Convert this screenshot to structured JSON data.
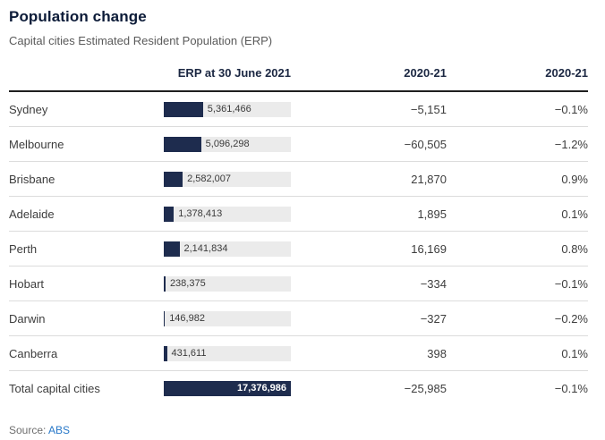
{
  "title": "Population change",
  "subtitle": "Capital cities Estimated Resident Population (ERP)",
  "table": {
    "columns": [
      "",
      "ERP at 30 June 2021",
      "2020-21",
      "2020-21"
    ],
    "max_value": 17376986,
    "rows": [
      {
        "label": "Sydney",
        "erp": 5361466,
        "erp_display": "5,361,466",
        "change": "−5,151",
        "pct": "−0.1%",
        "is_total": false
      },
      {
        "label": "Melbourne",
        "erp": 5096298,
        "erp_display": "5,096,298",
        "change": "−60,505",
        "pct": "−1.2%",
        "is_total": false
      },
      {
        "label": "Brisbane",
        "erp": 2582007,
        "erp_display": "2,582,007",
        "change": "21,870",
        "pct": "0.9%",
        "is_total": false
      },
      {
        "label": "Adelaide",
        "erp": 1378413,
        "erp_display": "1,378,413",
        "change": "1,895",
        "pct": "0.1%",
        "is_total": false
      },
      {
        "label": "Perth",
        "erp": 2141834,
        "erp_display": "2,141,834",
        "change": "16,169",
        "pct": "0.8%",
        "is_total": false
      },
      {
        "label": "Hobart",
        "erp": 238375,
        "erp_display": "238,375",
        "change": "−334",
        "pct": "−0.1%",
        "is_total": false
      },
      {
        "label": "Darwin",
        "erp": 146982,
        "erp_display": "146,982",
        "change": "−327",
        "pct": "−0.2%",
        "is_total": false
      },
      {
        "label": "Canberra",
        "erp": 431611,
        "erp_display": "431,611",
        "change": "398",
        "pct": "0.1%",
        "is_total": false
      },
      {
        "label": "Total capital cities",
        "erp": 17376986,
        "erp_display": "17,376,986",
        "change": "−25,985",
        "pct": "−0.1%",
        "is_total": true
      }
    ]
  },
  "source": {
    "label": "Source: ",
    "link": "ABS"
  },
  "colors": {
    "bar_fill": "#1e2c4e",
    "bar_track": "#ebebeb",
    "title": "#0c1b38",
    "link": "#2878c8"
  },
  "chart_data": {
    "type": "bar",
    "title": "Population change",
    "subtitle": "Capital cities Estimated Resident Population (ERP)",
    "columns": [
      "ERP at 30 June 2021",
      "2020-21",
      "2020-21"
    ],
    "categories": [
      "Sydney",
      "Melbourne",
      "Brisbane",
      "Adelaide",
      "Perth",
      "Hobart",
      "Darwin",
      "Canberra",
      "Total capital cities"
    ],
    "series": [
      {
        "name": "ERP at 30 June 2021",
        "values": [
          5361466,
          5096298,
          2582007,
          1378413,
          2141834,
          238375,
          146982,
          431611,
          17376986
        ]
      },
      {
        "name": "2020-21 change",
        "values": [
          -5151,
          -60505,
          21870,
          1895,
          16169,
          -334,
          -327,
          398,
          -25985
        ]
      },
      {
        "name": "2020-21 percent change",
        "values": [
          -0.1,
          -1.2,
          0.9,
          0.1,
          0.8,
          -0.1,
          -0.2,
          0.1,
          -0.1
        ]
      }
    ],
    "bar_axis_max": 17376986,
    "orientation": "horizontal",
    "legend_position": "none",
    "source": "ABS"
  }
}
